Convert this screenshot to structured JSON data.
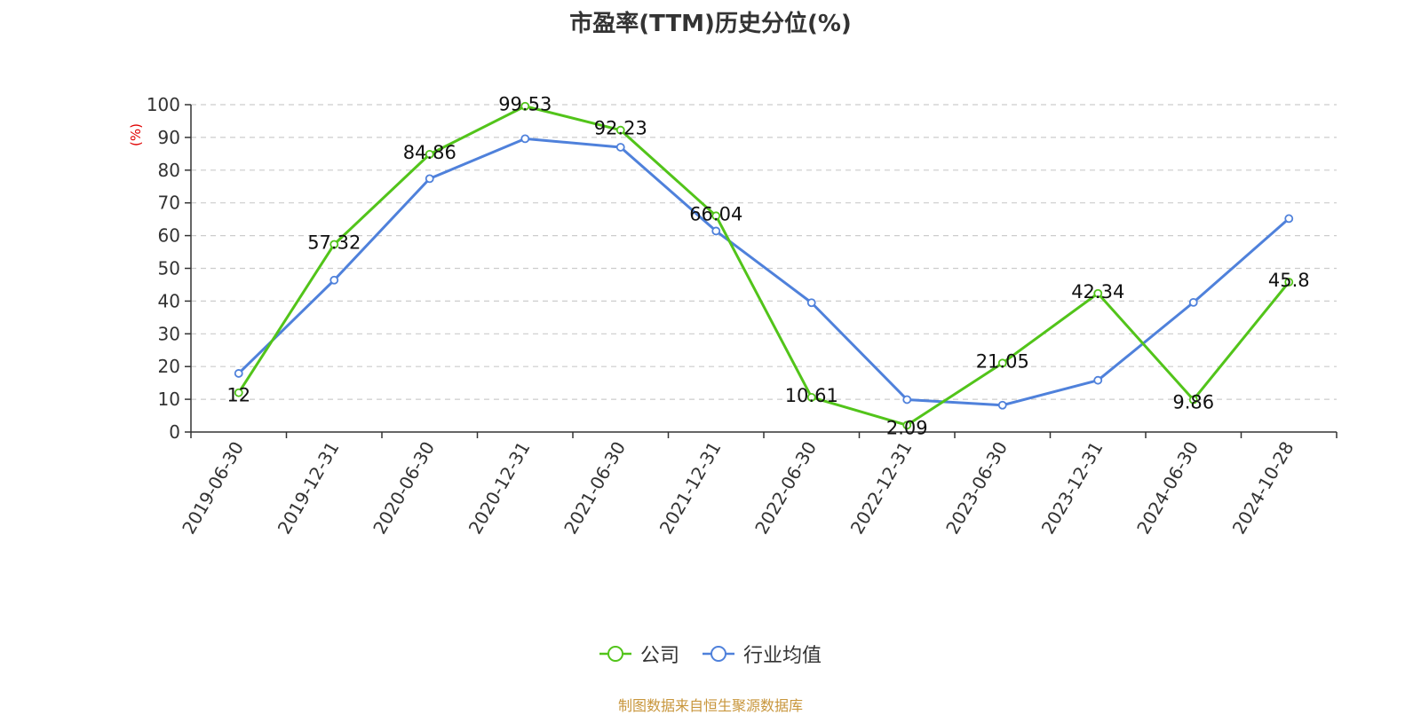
{
  "chart_data": {
    "type": "line",
    "title": "市盈率(TTM)历史分位(%)",
    "ylabel": "(%)",
    "xlabel": "",
    "ylim": [
      0,
      100
    ],
    "yticks": [
      0,
      10,
      20,
      30,
      40,
      50,
      60,
      70,
      80,
      90,
      100
    ],
    "categories": [
      "2019-06-30",
      "2019-12-31",
      "2020-06-30",
      "2020-12-31",
      "2021-06-30",
      "2021-12-31",
      "2022-06-30",
      "2022-12-31",
      "2023-06-30",
      "2023-12-31",
      "2024-06-30",
      "2024-10-28"
    ],
    "series": [
      {
        "name": "公司",
        "color": "#52c41a",
        "values": [
          12,
          57.32,
          84.86,
          99.53,
          92.23,
          66.04,
          10.61,
          2.09,
          21.05,
          42.34,
          9.86,
          45.8
        ],
        "data_labels": [
          "12",
          "57.32",
          "84.86",
          "99.53",
          "92.23",
          "66.04",
          "10.61",
          "2.09",
          "21.05",
          "42.34",
          "9.86",
          "45.8"
        ]
      },
      {
        "name": "行业均值",
        "color": "#4f81db",
        "values": [
          17.9,
          46.4,
          77.4,
          89.6,
          87.0,
          61.4,
          39.5,
          9.9,
          8.2,
          15.8,
          39.6,
          65.2
        ]
      }
    ],
    "grid": true,
    "legend_position": "bottom"
  },
  "footer": {
    "source": "制图数据来自恒生聚源数据库"
  }
}
